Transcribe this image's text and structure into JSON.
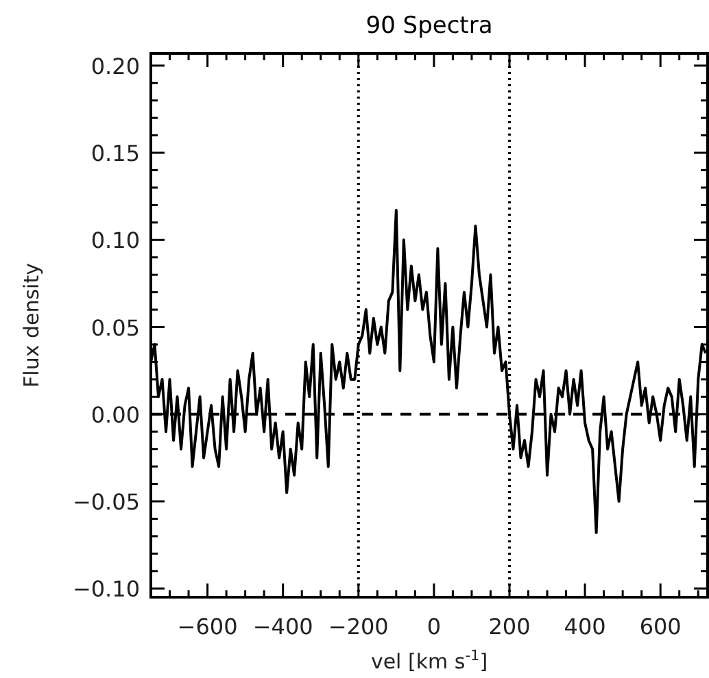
{
  "chart_data": {
    "type": "line",
    "title": "90 Spectra",
    "xlabel": "vel [km s$^{-1}$]",
    "ylabel": "Flux density",
    "xlim": [
      -750,
      725
    ],
    "ylim": [
      -0.105,
      0.207
    ],
    "xticks": [
      {
        "value": -600,
        "label": "−600"
      },
      {
        "value": -400,
        "label": "−400"
      },
      {
        "value": -200,
        "label": "−200"
      },
      0,
      200,
      400,
      600,
      {
        "value": -700,
        "label": null
      },
      {
        "value": -650,
        "label": null
      },
      {
        "value": -550,
        "label": null
      },
      {
        "value": -500,
        "label": null
      },
      {
        "value": -450,
        "label": null
      },
      {
        "value": -350,
        "label": null
      },
      {
        "value": -300,
        "label": null
      },
      {
        "value": -250,
        "label": null
      },
      {
        "value": -150,
        "label": null
      },
      {
        "value": -100,
        "label": null
      },
      {
        "value": -50,
        "label": null
      },
      {
        "value": 50,
        "label": null
      },
      {
        "value": 100,
        "label": null
      },
      {
        "value": 150,
        "label": null
      },
      {
        "value": 250,
        "label": null
      },
      {
        "value": 300,
        "label": null
      },
      {
        "value": 350,
        "label": null
      },
      {
        "value": 450,
        "label": null
      },
      {
        "value": 500,
        "label": null
      },
      {
        "value": 550,
        "label": null
      },
      {
        "value": 650,
        "label": null
      },
      {
        "value": 700,
        "label": null
      }
    ],
    "yticks": [
      {
        "value": -0.1,
        "label": "−0.10"
      },
      {
        "value": -0.05,
        "label": "−0.05"
      },
      {
        "value": 0,
        "label": "0.00"
      },
      {
        "value": 0.05,
        "label": "0.05"
      },
      {
        "value": 0.1,
        "label": "0.10"
      },
      {
        "value": 0.15,
        "label": "0.15"
      },
      {
        "value": 0.2,
        "label": "0.20"
      },
      {
        "value": -0.09,
        "label": null
      },
      {
        "value": -0.08,
        "label": null
      },
      {
        "value": -0.07,
        "label": null
      },
      {
        "value": -0.06,
        "label": null
      },
      {
        "value": -0.04,
        "label": null
      },
      {
        "value": -0.03,
        "label": null
      },
      {
        "value": -0.02,
        "label": null
      },
      {
        "value": -0.01,
        "label": null
      },
      {
        "value": 0.01,
        "label": null
      },
      {
        "value": 0.02,
        "label": null
      },
      {
        "value": 0.03,
        "label": null
      },
      {
        "value": 0.04,
        "label": null
      },
      {
        "value": 0.06,
        "label": null
      },
      {
        "value": 0.07,
        "label": null
      },
      {
        "value": 0.08,
        "label": null
      },
      {
        "value": 0.09,
        "label": null
      },
      {
        "value": 0.11,
        "label": null
      },
      {
        "value": 0.12,
        "label": null
      },
      {
        "value": 0.13,
        "label": null
      },
      {
        "value": 0.14,
        "label": null
      },
      {
        "value": 0.16,
        "label": null
      },
      {
        "value": 0.17,
        "label": null
      },
      {
        "value": 0.18,
        "label": null
      },
      {
        "value": 0.19,
        "label": null
      }
    ],
    "grid": false,
    "ref_lines": [
      {
        "axis": "x",
        "value": -200,
        "line_style": "dotted",
        "color": "#000000"
      },
      {
        "axis": "x",
        "value": 200,
        "line_style": "dotted",
        "color": "#000000"
      },
      {
        "axis": "y",
        "value": 0,
        "line_style": "dashed",
        "color": "#000000"
      }
    ],
    "x": [
      -750,
      -740,
      -730,
      -720,
      -710,
      -700,
      -690,
      -680,
      -670,
      -660,
      -650,
      -640,
      -630,
      -620,
      -610,
      -600,
      -590,
      -580,
      -570,
      -560,
      -550,
      -540,
      -530,
      -520,
      -510,
      -500,
      -490,
      -480,
      -470,
      -460,
      -450,
      -440,
      -430,
      -420,
      -410,
      -400,
      -390,
      -380,
      -370,
      -360,
      -350,
      -340,
      -330,
      -320,
      -310,
      -300,
      -290,
      -280,
      -270,
      -260,
      -250,
      -240,
      -230,
      -220,
      -210,
      -200,
      -190,
      -180,
      -170,
      -160,
      -150,
      -140,
      -130,
      -120,
      -110,
      -100,
      -90,
      -80,
      -70,
      -60,
      -50,
      -40,
      -30,
      -20,
      -10,
      0,
      10,
      20,
      30,
      40,
      50,
      60,
      70,
      80,
      90,
      100,
      110,
      120,
      130,
      140,
      150,
      160,
      170,
      180,
      190,
      200,
      210,
      220,
      230,
      240,
      250,
      260,
      270,
      280,
      290,
      300,
      310,
      320,
      330,
      340,
      350,
      360,
      370,
      380,
      390,
      400,
      410,
      420,
      430,
      440,
      450,
      460,
      470,
      480,
      490,
      500,
      510,
      520,
      530,
      540,
      550,
      560,
      570,
      580,
      590,
      600,
      610,
      620,
      630,
      640,
      650,
      660,
      670,
      680,
      690,
      700,
      710,
      720
    ],
    "series": [
      {
        "color": "#000000",
        "line_style": "solid",
        "values": [
          0.03,
          0.04,
          0.01,
          0.02,
          -0.01,
          0.02,
          -0.015,
          0.01,
          -0.02,
          0.005,
          0.015,
          -0.03,
          -0.01,
          0.01,
          -0.025,
          -0.01,
          0.005,
          -0.02,
          -0.03,
          0.01,
          -0.02,
          0.02,
          -0.01,
          0.025,
          0.01,
          -0.01,
          0.02,
          0.035,
          0.0,
          0.015,
          -0.01,
          0.02,
          -0.02,
          -0.005,
          -0.025,
          -0.01,
          -0.045,
          -0.02,
          -0.035,
          -0.005,
          -0.02,
          0.03,
          0.01,
          0.04,
          -0.025,
          0.035,
          0.005,
          -0.03,
          0.04,
          0.02,
          0.03,
          0.015,
          0.035,
          0.02,
          0.02,
          0.04,
          0.045,
          0.06,
          0.035,
          0.055,
          0.04,
          0.05,
          0.035,
          0.065,
          0.07,
          0.117,
          0.025,
          0.1,
          0.06,
          0.085,
          0.065,
          0.08,
          0.06,
          0.07,
          0.045,
          0.03,
          0.095,
          0.04,
          0.075,
          0.02,
          0.05,
          0.015,
          0.045,
          0.07,
          0.05,
          0.075,
          0.108,
          0.08,
          0.065,
          0.05,
          0.08,
          0.035,
          0.05,
          0.025,
          0.03,
          0.0,
          -0.02,
          0.005,
          -0.025,
          -0.015,
          -0.03,
          -0.01,
          0.02,
          0.01,
          0.025,
          -0.035,
          0.0,
          -0.01,
          0.015,
          0.01,
          0.025,
          0.0,
          0.02,
          0.005,
          0.025,
          -0.005,
          -0.015,
          -0.02,
          -0.068,
          -0.01,
          0.01,
          -0.02,
          -0.01,
          -0.03,
          -0.05,
          -0.02,
          0.0,
          0.01,
          0.02,
          0.03,
          0.005,
          0.015,
          -0.005,
          0.01,
          0.0,
          -0.015,
          0.005,
          0.015,
          0.01,
          -0.01,
          0.02,
          0.005,
          -0.015,
          0.01,
          -0.03,
          0.02,
          0.04,
          0.035
        ]
      }
    ]
  }
}
